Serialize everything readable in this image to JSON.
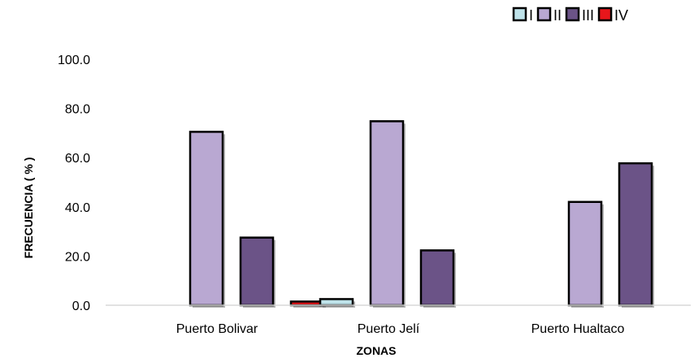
{
  "chart_data": {
    "type": "bar",
    "title": "",
    "xlabel": "ZONAS",
    "ylabel": "FRECUENCIA ( % )",
    "ylim": [
      0,
      100
    ],
    "yticks": [
      "0.0",
      "20.0",
      "40.0",
      "60.0",
      "80.0",
      "100.0"
    ],
    "ytick_values": [
      0,
      20,
      40,
      60,
      80,
      100
    ],
    "grid": false,
    "legend_position": "top-right",
    "categories": [
      "Puerto Bolivar",
      "Puerto Jelí",
      "Puerto Hualtaco"
    ],
    "series": [
      {
        "name": "I",
        "color": "#bfe3ea",
        "values": [
          0,
          2.5,
          0
        ]
      },
      {
        "name": "II",
        "color": "#b9a8d2",
        "values": [
          70.5,
          74.8,
          42.0
        ]
      },
      {
        "name": "III",
        "color": "#6b5387",
        "values": [
          27.5,
          22.3,
          57.7
        ]
      },
      {
        "name": "IV",
        "color": "#e8161b",
        "values": [
          1.5,
          0,
          0
        ]
      }
    ]
  }
}
